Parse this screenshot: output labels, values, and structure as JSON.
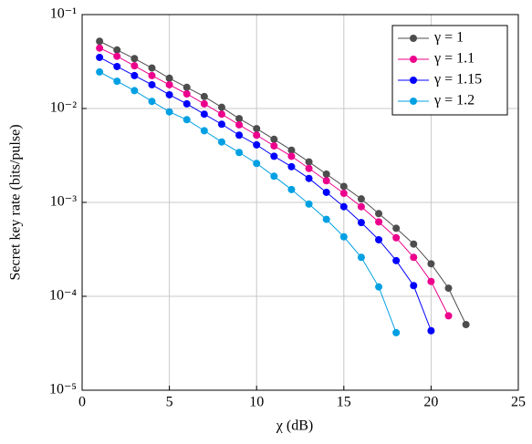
{
  "chart_data": {
    "type": "line",
    "xlabel": "χ (dB)",
    "ylabel": "Secret key rate (bits/pulse)",
    "xlim": [
      0,
      25
    ],
    "xticks": [
      0,
      5,
      10,
      15,
      20,
      25
    ],
    "ylim": [
      1e-05,
      0.1
    ],
    "ylog": true,
    "yticks": [
      {
        "value": 1e-05,
        "label": "10⁻⁵"
      },
      {
        "value": 0.0001,
        "label": "10⁻⁴"
      },
      {
        "value": 0.001,
        "label": "10⁻³"
      },
      {
        "value": 0.01,
        "label": "10⁻²"
      },
      {
        "value": 0.1,
        "label": "10⁻¹"
      }
    ],
    "grid": true,
    "legend": "upper right",
    "series": [
      {
        "name": "γ = 1",
        "color": "#4d4d4d",
        "x": [
          1,
          2,
          3,
          4,
          5,
          6,
          7,
          8,
          9,
          10,
          11,
          12,
          13,
          14,
          15,
          16,
          17,
          18,
          19,
          20,
          21,
          22
        ],
        "values": [
          0.052,
          0.042,
          0.034,
          0.027,
          0.021,
          0.0168,
          0.0134,
          0.0103,
          0.0078,
          0.0061,
          0.0047,
          0.0036,
          0.0027,
          0.002,
          0.00148,
          0.00109,
          0.00076,
          0.00053,
          0.00036,
          0.000222,
          0.000122,
          5e-05
        ]
      },
      {
        "name": "γ = 1.1",
        "color": "#ec008c",
        "x": [
          1,
          2,
          3,
          4,
          5,
          6,
          7,
          8,
          9,
          10,
          11,
          12,
          13,
          14,
          15,
          16,
          17,
          18,
          19,
          20,
          21
        ],
        "values": [
          0.044,
          0.036,
          0.0285,
          0.0224,
          0.0179,
          0.0143,
          0.0112,
          0.0087,
          0.0067,
          0.0052,
          0.004,
          0.0031,
          0.0023,
          0.0017,
          0.00125,
          0.0009,
          0.00062,
          0.00042,
          0.00026,
          0.000144,
          6.2e-05
        ]
      },
      {
        "name": "γ = 1.15",
        "color": "#0000ff",
        "x": [
          1,
          2,
          3,
          4,
          5,
          6,
          7,
          8,
          9,
          10,
          11,
          12,
          13,
          14,
          15,
          16,
          17,
          18,
          19,
          20
        ],
        "values": [
          0.035,
          0.028,
          0.0224,
          0.0179,
          0.014,
          0.0112,
          0.0087,
          0.0068,
          0.0052,
          0.0041,
          0.0031,
          0.0024,
          0.0018,
          0.00128,
          0.0009,
          0.00061,
          0.0004,
          0.00024,
          0.00013,
          4.3e-05
        ]
      },
      {
        "name": "γ = 1.2",
        "color": "#00a0e3",
        "x": [
          1,
          2,
          3,
          4,
          5,
          6,
          7,
          8,
          9,
          10,
          11,
          12,
          13,
          14,
          15,
          16,
          17,
          18
        ],
        "values": [
          0.0245,
          0.0195,
          0.0155,
          0.0119,
          0.0092,
          0.0076,
          0.0058,
          0.0044,
          0.0034,
          0.0026,
          0.0019,
          0.00137,
          0.00096,
          0.00066,
          0.00043,
          0.00026,
          0.000126,
          4.1e-05
        ]
      }
    ]
  }
}
